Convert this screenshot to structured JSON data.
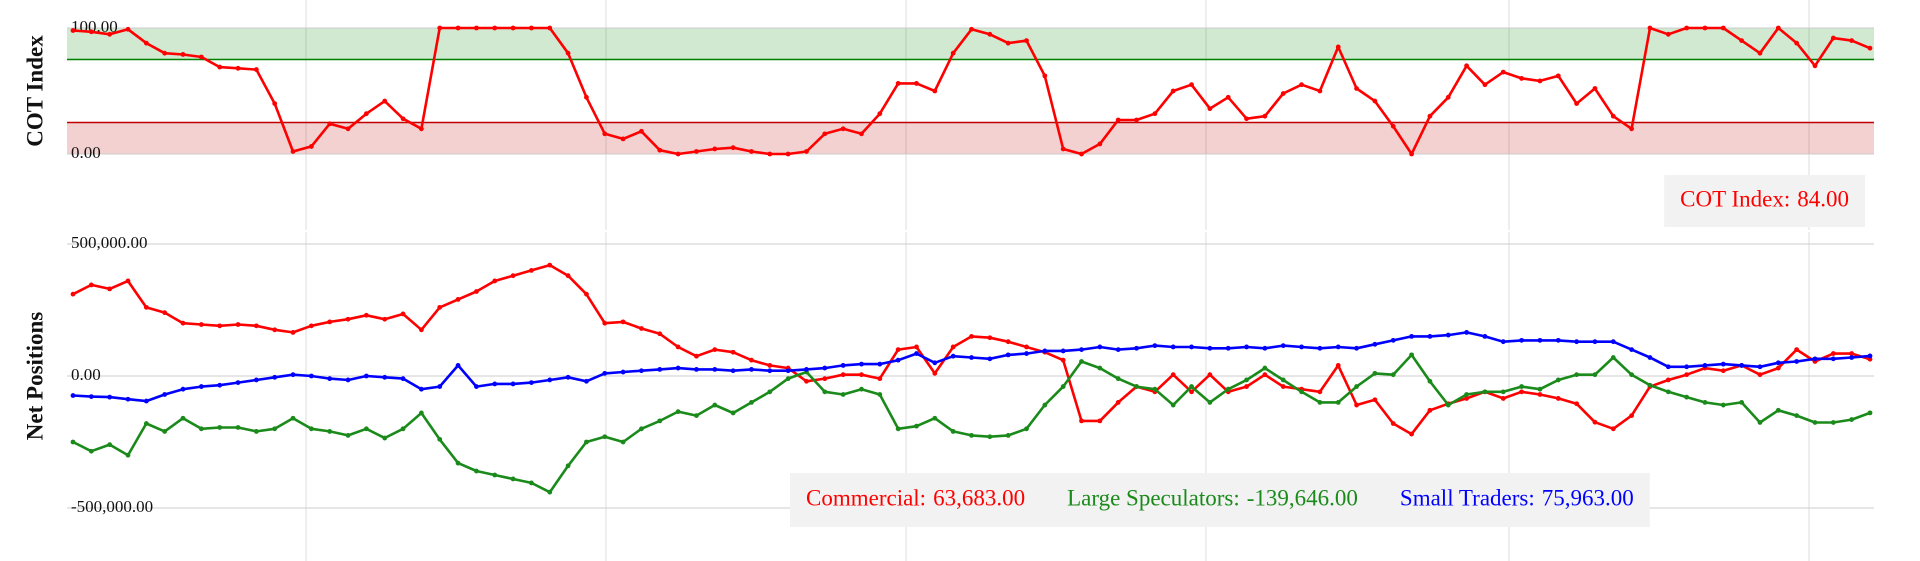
{
  "chart_data": [
    {
      "type": "line",
      "y_label": "COT Index",
      "ylim": [
        0,
        100
      ],
      "yticks": [
        {
          "value": 0,
          "label": "0.00"
        },
        {
          "value": 100,
          "label": "100.00"
        }
      ],
      "bands": [
        {
          "from": 75,
          "to": 100,
          "color": "#008000"
        },
        {
          "from": 0,
          "to": 25,
          "color": "#c00000"
        }
      ],
      "series": [
        {
          "name": "COT Index:",
          "color": "#ff0000",
          "last_value_label": "84.00",
          "values": [
            98,
            97,
            95,
            99,
            88,
            80,
            79,
            77,
            69,
            68,
            67,
            40,
            2,
            6,
            24,
            20,
            32,
            42,
            28,
            20,
            100,
            100,
            100,
            100,
            100,
            100,
            100,
            80,
            45,
            16,
            12,
            18,
            3,
            0,
            2,
            4,
            5,
            2,
            0,
            0,
            2,
            16,
            20,
            16,
            32,
            56,
            56,
            50,
            80,
            99,
            95,
            88,
            90,
            62,
            4,
            0,
            8,
            27,
            27,
            32,
            50,
            55,
            36,
            45,
            28,
            30,
            48,
            55,
            50,
            85,
            52,
            42,
            22,
            0,
            30,
            45,
            70,
            55,
            65,
            60,
            58,
            62,
            40,
            52,
            30,
            20,
            100,
            95,
            100,
            100,
            100,
            90,
            80,
            100,
            88,
            70,
            92,
            90,
            84
          ]
        }
      ]
    },
    {
      "type": "line",
      "y_label": "Net Positions",
      "ylim": [
        -500000,
        500000
      ],
      "yticks": [
        {
          "value": -500000,
          "label": "-500,000.00"
        },
        {
          "value": 0,
          "label": "0.00"
        },
        {
          "value": 500000,
          "label": "500,000.00"
        }
      ],
      "series": [
        {
          "name": "Commercial:",
          "color": "#ff0000",
          "last_value_label": "63,683.00",
          "values": [
            310000,
            345000,
            330000,
            360000,
            260000,
            240000,
            200000,
            195000,
            190000,
            195000,
            190000,
            175000,
            165000,
            190000,
            205000,
            215000,
            230000,
            215000,
            235000,
            175000,
            260000,
            290000,
            320000,
            360000,
            380000,
            400000,
            420000,
            380000,
            310000,
            200000,
            205000,
            180000,
            160000,
            110000,
            75000,
            100000,
            90000,
            60000,
            40000,
            30000,
            -20000,
            -10000,
            5000,
            5000,
            -10000,
            100000,
            110000,
            10000,
            110000,
            150000,
            145000,
            130000,
            110000,
            90000,
            60000,
            -170000,
            -170000,
            -100000,
            -40000,
            -60000,
            5000,
            -60000,
            5000,
            -60000,
            -40000,
            5000,
            -40000,
            -50000,
            -60000,
            40000,
            -110000,
            -90000,
            -180000,
            -220000,
            -130000,
            -105000,
            -85000,
            -60000,
            -85000,
            -60000,
            -70000,
            -85000,
            -105000,
            -175000,
            -200000,
            -150000,
            -40000,
            -15000,
            5000,
            30000,
            20000,
            40000,
            5000,
            30000,
            100000,
            55000,
            85000,
            85000,
            63683
          ]
        },
        {
          "name": "Large Speculators:",
          "color": "#1a8a1a",
          "last_value_label": "-139,646.00",
          "values": [
            -250000,
            -285000,
            -260000,
            -300000,
            -180000,
            -210000,
            -160000,
            -200000,
            -195000,
            -195000,
            -210000,
            -200000,
            -160000,
            -200000,
            -210000,
            -225000,
            -200000,
            -235000,
            -200000,
            -140000,
            -240000,
            -330000,
            -360000,
            -375000,
            -390000,
            -405000,
            -440000,
            -340000,
            -250000,
            -230000,
            -250000,
            -200000,
            -170000,
            -135000,
            -150000,
            -110000,
            -140000,
            -100000,
            -60000,
            -10000,
            15000,
            -60000,
            -70000,
            -50000,
            -70000,
            -200000,
            -190000,
            -160000,
            -210000,
            -225000,
            -230000,
            -225000,
            -200000,
            -110000,
            -40000,
            55000,
            30000,
            -10000,
            -40000,
            -50000,
            -110000,
            -40000,
            -100000,
            -50000,
            -15000,
            30000,
            -15000,
            -60000,
            -100000,
            -100000,
            -40000,
            10000,
            5000,
            80000,
            -20000,
            -110000,
            -70000,
            -60000,
            -60000,
            -40000,
            -50000,
            -15000,
            5000,
            5000,
            70000,
            5000,
            -35000,
            -60000,
            -80000,
            -100000,
            -110000,
            -100000,
            -176000,
            -130000,
            -150000,
            -176000,
            -176000,
            -165000,
            -139646
          ]
        },
        {
          "name": "Small Traders:",
          "color": "#0000ff",
          "last_value_label": "75,963.00",
          "values": [
            -74000,
            -78000,
            -80000,
            -88000,
            -95000,
            -70000,
            -50000,
            -40000,
            -35000,
            -25000,
            -15000,
            -5000,
            5000,
            0,
            -10000,
            -15000,
            0,
            -5000,
            -10000,
            -50000,
            -40000,
            40000,
            -40000,
            -30000,
            -30000,
            -25000,
            -15000,
            -5000,
            -20000,
            10000,
            15000,
            20000,
            25000,
            30000,
            25000,
            25000,
            20000,
            25000,
            20000,
            20000,
            25000,
            30000,
            40000,
            45000,
            45000,
            60000,
            85000,
            50000,
            75000,
            70000,
            65000,
            80000,
            85000,
            95000,
            95000,
            100000,
            110000,
            100000,
            105000,
            115000,
            110000,
            110000,
            105000,
            105000,
            110000,
            105000,
            115000,
            110000,
            105000,
            110000,
            105000,
            120000,
            135000,
            150000,
            150000,
            155000,
            165000,
            150000,
            130000,
            135000,
            135000,
            135000,
            130000,
            130000,
            130000,
            100000,
            70000,
            35000,
            35000,
            40000,
            45000,
            40000,
            35000,
            50000,
            55000,
            65000,
            65000,
            70000,
            75963
          ]
        }
      ]
    }
  ]
}
